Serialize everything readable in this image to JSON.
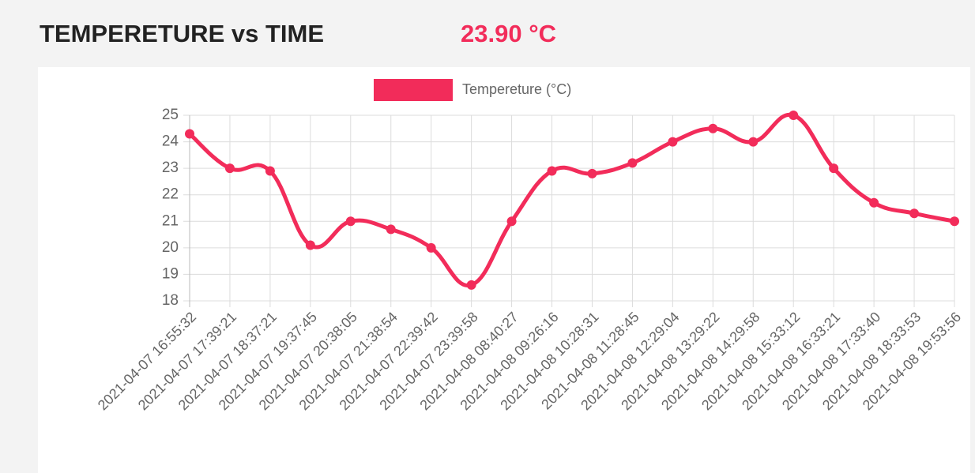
{
  "header": {
    "title": "TEMPERETURE vs TIME",
    "current_value": "23.90 °C"
  },
  "chart_data": {
    "type": "line",
    "categories": [
      "2021-04-07 16:55:32",
      "2021-04-07 17:39:21",
      "2021-04-07 18:37:21",
      "2021-04-07 19:37:45",
      "2021-04-07 20:38:05",
      "2021-04-07 21:38:54",
      "2021-04-07 22:39:42",
      "2021-04-07 23:39:58",
      "2021-04-08 08:40:27",
      "2021-04-08 09:26:16",
      "2021-04-08 10:28:31",
      "2021-04-08 11:28:45",
      "2021-04-08 12:29:04",
      "2021-04-08 13:29:22",
      "2021-04-08 14:29:58",
      "2021-04-08 15:33:12",
      "2021-04-08 16:33:21",
      "2021-04-08 17:33:40",
      "2021-04-08 18:33:53",
      "2021-04-08 19:53:56"
    ],
    "series": [
      {
        "name": "Tempereture (°C)",
        "color": "#f22c5a",
        "values": [
          24.3,
          23.0,
          22.9,
          20.1,
          21.0,
          20.7,
          20.0,
          18.6,
          21.0,
          22.9,
          22.8,
          23.2,
          24.0,
          24.5,
          24.0,
          25.0,
          23.0,
          21.7,
          21.3,
          21.0
        ]
      }
    ],
    "ylim": [
      18,
      25
    ],
    "yticks": [
      18,
      19,
      20,
      21,
      22,
      23,
      24,
      25
    ],
    "grid": true,
    "legend": "top"
  }
}
